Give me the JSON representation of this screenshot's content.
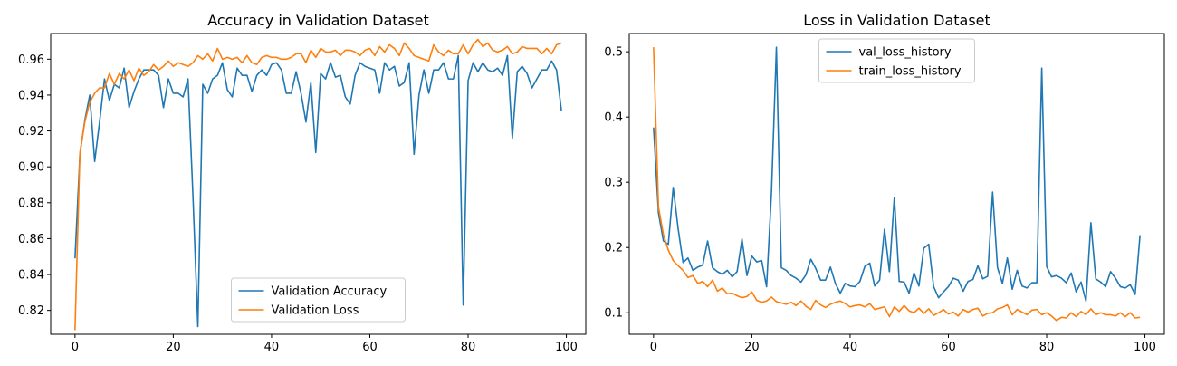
{
  "chart_data": [
    {
      "type": "line",
      "title": "Accuracy in Validation Dataset",
      "xlabel": "",
      "ylabel": "",
      "xlim": [
        -4.95,
        103.95
      ],
      "ylim": [
        0.8067,
        0.9743
      ],
      "xticks": [
        "0",
        "20",
        "40",
        "60",
        "80",
        "100"
      ],
      "yticks": [
        "0.82",
        "0.84",
        "0.86",
        "0.88",
        "0.90",
        "0.92",
        "0.94",
        "0.96"
      ],
      "grid": false,
      "legend_position": "lower center",
      "series": [
        {
          "name": "Validation Accuracy",
          "color": "#1f77b4",
          "values": [
            0.849,
            0.907,
            0.926,
            0.94,
            0.903,
            0.925,
            0.949,
            0.937,
            0.946,
            0.944,
            0.955,
            0.933,
            0.942,
            0.949,
            0.954,
            0.954,
            0.954,
            0.951,
            0.933,
            0.949,
            0.941,
            0.941,
            0.939,
            0.949,
            0.884,
            0.811,
            0.946,
            0.941,
            0.949,
            0.951,
            0.958,
            0.943,
            0.939,
            0.955,
            0.951,
            0.951,
            0.942,
            0.951,
            0.954,
            0.951,
            0.957,
            0.958,
            0.954,
            0.941,
            0.941,
            0.953,
            0.941,
            0.925,
            0.947,
            0.908,
            0.952,
            0.949,
            0.958,
            0.95,
            0.951,
            0.939,
            0.935,
            0.951,
            0.958,
            0.956,
            0.955,
            0.954,
            0.941,
            0.958,
            0.954,
            0.956,
            0.945,
            0.947,
            0.958,
            0.907,
            0.94,
            0.954,
            0.941,
            0.954,
            0.954,
            0.958,
            0.949,
            0.949,
            0.962,
            0.823,
            0.948,
            0.958,
            0.953,
            0.958,
            0.954,
            0.953,
            0.955,
            0.951,
            0.962,
            0.916,
            0.953,
            0.956,
            0.952,
            0.944,
            0.949,
            0.954,
            0.954,
            0.959,
            0.954,
            0.931
          ]
        },
        {
          "name": "Validation Loss",
          "color": "#ff7f0e",
          "values": [
            0.809,
            0.908,
            0.925,
            0.936,
            0.941,
            0.944,
            0.944,
            0.952,
            0.946,
            0.952,
            0.949,
            0.954,
            0.948,
            0.955,
            0.951,
            0.953,
            0.957,
            0.954,
            0.956,
            0.959,
            0.956,
            0.958,
            0.957,
            0.956,
            0.958,
            0.962,
            0.96,
            0.963,
            0.959,
            0.966,
            0.96,
            0.961,
            0.96,
            0.961,
            0.958,
            0.962,
            0.958,
            0.957,
            0.961,
            0.962,
            0.961,
            0.961,
            0.96,
            0.96,
            0.961,
            0.963,
            0.963,
            0.958,
            0.965,
            0.961,
            0.966,
            0.964,
            0.964,
            0.965,
            0.962,
            0.965,
            0.965,
            0.964,
            0.962,
            0.965,
            0.966,
            0.962,
            0.967,
            0.964,
            0.968,
            0.966,
            0.962,
            0.969,
            0.966,
            0.962,
            0.961,
            0.96,
            0.959,
            0.968,
            0.964,
            0.962,
            0.965,
            0.963,
            0.963,
            0.968,
            0.963,
            0.968,
            0.971,
            0.967,
            0.969,
            0.965,
            0.964,
            0.965,
            0.967,
            0.963,
            0.964,
            0.967,
            0.966,
            0.966,
            0.966,
            0.963,
            0.966,
            0.963,
            0.968,
            0.969
          ]
        }
      ]
    },
    {
      "type": "line",
      "title": "Loss in Validation Dataset",
      "xlabel": "",
      "ylabel": "",
      "xlim": [
        -4.95,
        103.95
      ],
      "ylim": [
        0.067,
        0.528
      ],
      "xticks": [
        "0",
        "20",
        "40",
        "60",
        "80",
        "100"
      ],
      "yticks": [
        "0.1",
        "0.2",
        "0.3",
        "0.4",
        "0.5"
      ],
      "grid": false,
      "legend_position": "upper center",
      "series": [
        {
          "name": "val_loss_history",
          "color": "#1f77b4",
          "values": [
            0.384,
            0.253,
            0.21,
            0.205,
            0.292,
            0.229,
            0.177,
            0.184,
            0.165,
            0.17,
            0.173,
            0.21,
            0.169,
            0.163,
            0.159,
            0.165,
            0.155,
            0.163,
            0.213,
            0.157,
            0.187,
            0.178,
            0.18,
            0.14,
            0.285,
            0.507,
            0.169,
            0.165,
            0.157,
            0.153,
            0.147,
            0.158,
            0.182,
            0.168,
            0.15,
            0.15,
            0.17,
            0.145,
            0.13,
            0.145,
            0.141,
            0.14,
            0.148,
            0.171,
            0.176,
            0.141,
            0.15,
            0.228,
            0.163,
            0.277,
            0.148,
            0.147,
            0.13,
            0.161,
            0.141,
            0.199,
            0.205,
            0.14,
            0.123,
            0.132,
            0.14,
            0.153,
            0.15,
            0.133,
            0.148,
            0.151,
            0.172,
            0.152,
            0.156,
            0.285,
            0.169,
            0.145,
            0.184,
            0.136,
            0.165,
            0.141,
            0.138,
            0.146,
            0.146,
            0.475,
            0.171,
            0.155,
            0.157,
            0.153,
            0.146,
            0.161,
            0.132,
            0.147,
            0.118,
            0.238,
            0.152,
            0.147,
            0.14,
            0.163,
            0.153,
            0.14,
            0.138,
            0.143,
            0.128,
            0.219
          ]
        },
        {
          "name": "train_loss_history",
          "color": "#ff7f0e",
          "values": [
            0.507,
            0.262,
            0.22,
            0.196,
            0.18,
            0.172,
            0.165,
            0.154,
            0.157,
            0.145,
            0.148,
            0.14,
            0.15,
            0.133,
            0.138,
            0.129,
            0.13,
            0.126,
            0.123,
            0.125,
            0.132,
            0.119,
            0.116,
            0.118,
            0.124,
            0.117,
            0.115,
            0.113,
            0.116,
            0.111,
            0.118,
            0.11,
            0.105,
            0.119,
            0.112,
            0.108,
            0.113,
            0.116,
            0.118,
            0.114,
            0.109,
            0.111,
            0.112,
            0.109,
            0.114,
            0.105,
            0.107,
            0.109,
            0.094,
            0.109,
            0.102,
            0.111,
            0.103,
            0.1,
            0.107,
            0.099,
            0.106,
            0.096,
            0.1,
            0.105,
            0.098,
            0.101,
            0.095,
            0.105,
            0.101,
            0.105,
            0.107,
            0.095,
            0.099,
            0.1,
            0.106,
            0.108,
            0.112,
            0.097,
            0.105,
            0.101,
            0.097,
            0.104,
            0.105,
            0.097,
            0.1,
            0.095,
            0.088,
            0.093,
            0.092,
            0.1,
            0.094,
            0.102,
            0.097,
            0.106,
            0.097,
            0.1,
            0.097,
            0.097,
            0.095,
            0.1,
            0.094,
            0.1,
            0.092,
            0.093
          ]
        }
      ]
    }
  ]
}
